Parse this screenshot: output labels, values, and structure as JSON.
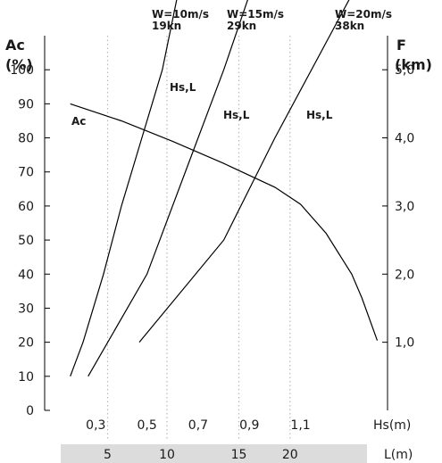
{
  "chart_data": {
    "type": "line",
    "left_axis": {
      "title_line1": "Ac",
      "title_line2": "(%)",
      "ylim": [
        0,
        110
      ],
      "ticks": [
        0,
        10,
        20,
        30,
        40,
        50,
        60,
        70,
        80,
        90,
        100
      ]
    },
    "right_axis": {
      "title_line1": "F",
      "title_line2": "(km)",
      "ylim": [
        0,
        5.5
      ],
      "ticks": [
        {
          "value": 1.0,
          "label": "1,0"
        },
        {
          "value": 2.0,
          "label": "2,0"
        },
        {
          "value": 3.0,
          "label": "3,0"
        },
        {
          "value": 4.0,
          "label": "4,0"
        },
        {
          "value": 5.0,
          "label": "5,0"
        }
      ]
    },
    "x_axis": {
      "label": "Hs(m)",
      "xlim": [
        0.1,
        1.44
      ],
      "ticks": [
        {
          "value": 0.3,
          "label": "0,3"
        },
        {
          "value": 0.5,
          "label": "0,5"
        },
        {
          "value": 0.7,
          "label": "0,7"
        },
        {
          "value": 0.9,
          "label": "0,9"
        },
        {
          "value": 1.1,
          "label": "1,1"
        }
      ]
    },
    "l_axis": {
      "label": "L(m)",
      "ticks": [
        {
          "hs": 0.346,
          "label": "5"
        },
        {
          "hs": 0.578,
          "label": "10"
        },
        {
          "hs": 0.859,
          "label": "15"
        },
        {
          "hs": 1.059,
          "label": "20"
        }
      ]
    },
    "series": [
      {
        "label": "Ac",
        "axis": "left",
        "points": [
          [
            0.2,
            90
          ],
          [
            0.4,
            85
          ],
          [
            0.6,
            79
          ],
          [
            0.8,
            72.5
          ],
          [
            1.0,
            65.5
          ],
          [
            1.1,
            60.5
          ],
          [
            1.2,
            52
          ],
          [
            1.3,
            40
          ],
          [
            1.34,
            33
          ],
          [
            1.4,
            20.5
          ]
        ]
      },
      {
        "label": "Hs,L",
        "wind_line1": "W=10m/s",
        "wind_line2": "19kn",
        "axis": "right",
        "points": [
          [
            0.2,
            0.5
          ],
          [
            0.25,
            1.0
          ],
          [
            0.33,
            2.0
          ],
          [
            0.4,
            3.0
          ],
          [
            0.48,
            4.0
          ],
          [
            0.56,
            5.0
          ],
          [
            0.62,
            6.1
          ]
        ]
      },
      {
        "label": "Hs,L",
        "wind_line1": "W=15m/s",
        "wind_line2": "29kn",
        "axis": "right",
        "points": [
          [
            0.27,
            0.5
          ],
          [
            0.5,
            2.0
          ],
          [
            0.7,
            4.0
          ],
          [
            0.8,
            5.0
          ],
          [
            0.9,
            6.1
          ]
        ]
      },
      {
        "label": "Hs,L",
        "wind_line1": "W=20m/s",
        "wind_line2": "38kn",
        "axis": "right",
        "points": [
          [
            0.47,
            1.0
          ],
          [
            0.8,
            2.5
          ],
          [
            1.0,
            4.0
          ],
          [
            1.3,
            6.1
          ]
        ]
      }
    ]
  }
}
